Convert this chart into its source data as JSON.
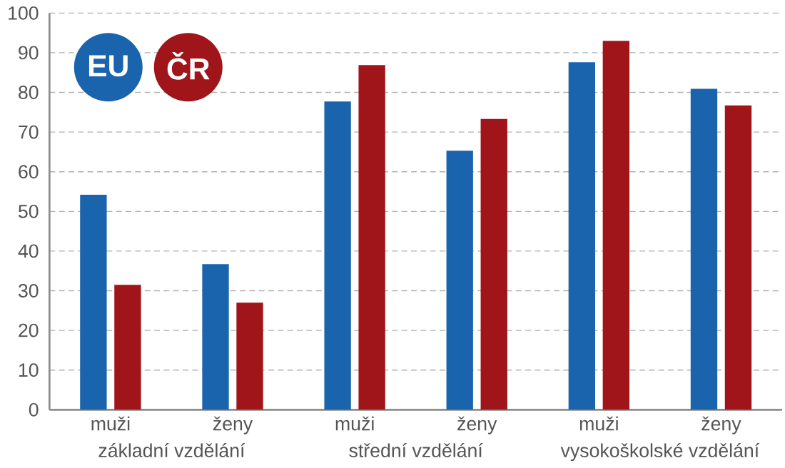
{
  "chart_data": {
    "type": "bar",
    "categories": [
      "muži",
      "ženy",
      "muži",
      "ženy",
      "muži",
      "ženy"
    ],
    "series": [
      {
        "name": "EU",
        "color": "#1a64ad",
        "values": [
          54.2,
          36.7,
          77.7,
          65.3,
          87.6,
          80.9
        ]
      },
      {
        "name": "ČR",
        "color": "#a01519",
        "values": [
          31.5,
          27.0,
          86.9,
          73.3,
          93.0,
          76.7
        ]
      }
    ],
    "annotations": [
      "základní vzdělání",
      "střední vzdělání",
      "vysokoškolské vzdělání"
    ],
    "ylim": [
      0,
      100
    ],
    "yticks": [
      0,
      10,
      20,
      30,
      40,
      50,
      60,
      70,
      80,
      90,
      100
    ],
    "grid": "y",
    "legend": "top left"
  }
}
